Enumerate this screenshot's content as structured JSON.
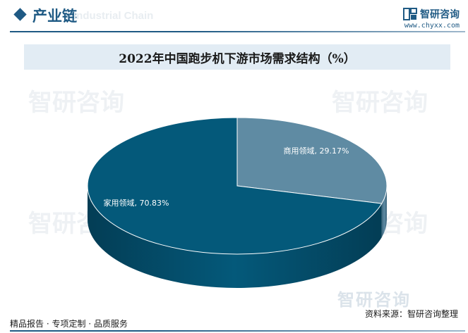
{
  "header": {
    "section_title": "产业链",
    "section_subtitle": "Industrial Chain"
  },
  "brand": {
    "name": "智研咨询",
    "url": "www.chyxx.com"
  },
  "colors": {
    "accent": "#1f5a84",
    "slice_household": "#04597a",
    "slice_household_side": "#033d55",
    "slice_commercial": "#5f8ba3",
    "slice_commercial_side": "#3c657d",
    "title_bg": "#e2ecf4"
  },
  "watermark_text": "智研咨询",
  "footer": {
    "left": "精品报告 · 专项定制 · 品质服务",
    "right": "资料来源：智研咨询整理",
    "logo": "智研咨询"
  },
  "chart_data": {
    "type": "pie",
    "title": "2022年中国跑步机下游市场需求结构（%）",
    "style": "3d",
    "slices": [
      {
        "name": "商用领域",
        "value": 29.17,
        "label": "商用领域, 29.17%"
      },
      {
        "name": "家用领域",
        "value": 70.83,
        "label": "家用领域, 70.83%"
      }
    ]
  }
}
